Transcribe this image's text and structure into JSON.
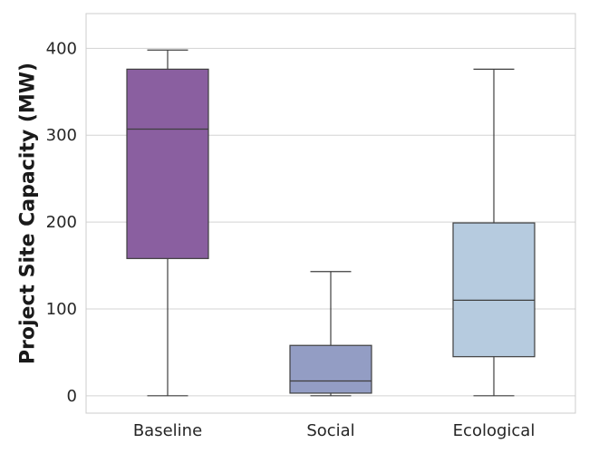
{
  "chart_data": {
    "type": "box",
    "title": "",
    "xlabel": "",
    "ylabel": "Project Site Capacity (MW)",
    "ylim": [
      -20,
      440
    ],
    "yticks": [
      0,
      100,
      200,
      300,
      400
    ],
    "grid": "horizontal",
    "categories": [
      "Baseline",
      "Social",
      "Ecological"
    ],
    "boxes": [
      {
        "category": "Baseline",
        "whisker_low": 0,
        "q1": 158,
        "median": 307,
        "q3": 376,
        "whisker_high": 398,
        "color": "#8a5fa0"
      },
      {
        "category": "Social",
        "whisker_low": 0,
        "q1": 3,
        "median": 17,
        "q3": 58,
        "whisker_high": 143,
        "color": "#939dc4"
      },
      {
        "category": "Ecological",
        "whisker_low": 0,
        "q1": 45,
        "median": 110,
        "q3": 199,
        "whisker_high": 376,
        "color": "#b6cbdf"
      }
    ]
  }
}
